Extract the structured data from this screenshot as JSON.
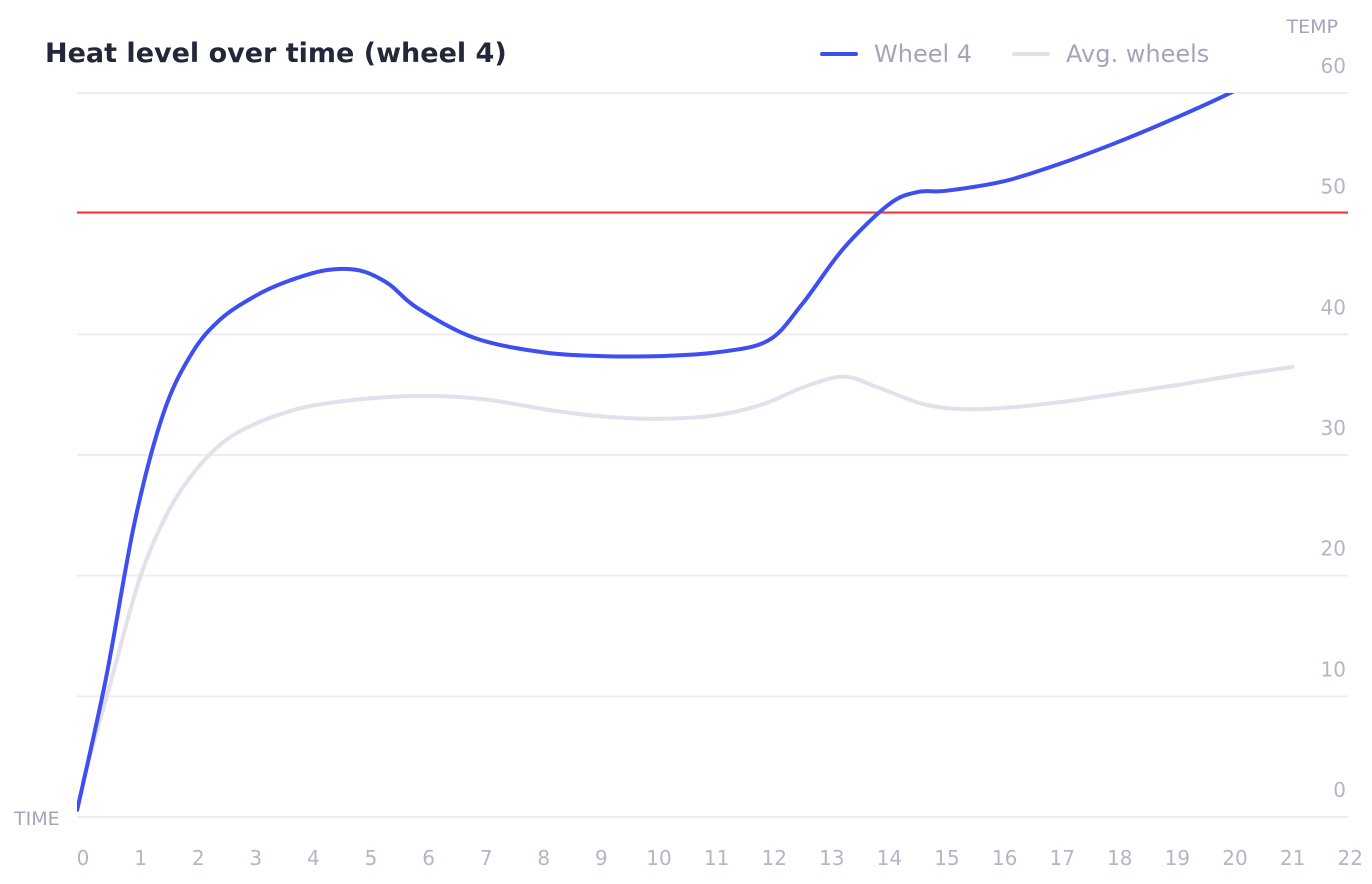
{
  "chart_data": {
    "type": "line",
    "title": "Heat level over time (wheel 4)",
    "xlabel": "TIME",
    "ylabel": "TEMP",
    "xlim": [
      0,
      22
    ],
    "ylim": [
      0,
      60
    ],
    "x_ticks": [
      0,
      1,
      2,
      3,
      4,
      5,
      6,
      7,
      8,
      9,
      10,
      11,
      12,
      13,
      14,
      15,
      16,
      17,
      18,
      19,
      20,
      21,
      22
    ],
    "y_ticks": [
      0,
      10,
      20,
      30,
      40,
      50,
      60
    ],
    "grid": true,
    "legend_position": "top",
    "threshold": {
      "value": 50.1,
      "color": "#e53935"
    },
    "series": [
      {
        "name": "Wheel 4",
        "color": "#3d4ff0",
        "points": [
          [
            -0.1,
            0.6
          ],
          [
            0.4,
            11.5
          ],
          [
            0.9,
            24.5
          ],
          [
            1.4,
            33.5
          ],
          [
            1.9,
            38.5
          ],
          [
            2.4,
            41.3
          ],
          [
            3,
            43.2
          ],
          [
            3.5,
            44.3
          ],
          [
            4.2,
            45.3
          ],
          [
            4.8,
            45.3
          ],
          [
            5.3,
            44.2
          ],
          [
            5.8,
            42.2
          ],
          [
            6.8,
            39.7
          ],
          [
            8,
            38.5
          ],
          [
            9,
            38.2
          ],
          [
            10,
            38.2
          ],
          [
            11,
            38.5
          ],
          [
            11.9,
            39.5
          ],
          [
            12.5,
            42.6
          ],
          [
            13.2,
            47.1
          ],
          [
            14,
            50.8
          ],
          [
            14.5,
            51.8
          ],
          [
            15,
            51.9
          ],
          [
            16,
            52.7
          ],
          [
            17,
            54.2
          ],
          [
            18,
            56.0
          ],
          [
            19,
            58.0
          ],
          [
            20,
            60.2
          ],
          [
            20.5,
            61.6
          ],
          [
            20.8,
            62.0
          ]
        ]
      },
      {
        "name": "Avg. wheels",
        "color": "#e0e1ec",
        "points": [
          [
            0,
            3.0
          ],
          [
            0.5,
            11.5
          ],
          [
            1,
            20.0
          ],
          [
            1.5,
            25.5
          ],
          [
            2,
            29.0
          ],
          [
            2.5,
            31.3
          ],
          [
            3,
            32.6
          ],
          [
            3.5,
            33.5
          ],
          [
            4,
            34.1
          ],
          [
            5,
            34.7
          ],
          [
            6,
            34.9
          ],
          [
            7,
            34.6
          ],
          [
            8,
            33.8
          ],
          [
            9,
            33.2
          ],
          [
            10,
            33.0
          ],
          [
            11,
            33.3
          ],
          [
            11.8,
            34.2
          ],
          [
            12.5,
            35.6
          ],
          [
            13.2,
            36.5
          ],
          [
            13.8,
            35.6
          ],
          [
            14.6,
            34.2
          ],
          [
            15.3,
            33.8
          ],
          [
            16,
            33.9
          ],
          [
            17,
            34.4
          ],
          [
            18,
            35.1
          ],
          [
            19,
            35.8
          ],
          [
            20,
            36.6
          ],
          [
            21,
            37.3
          ]
        ]
      }
    ]
  }
}
